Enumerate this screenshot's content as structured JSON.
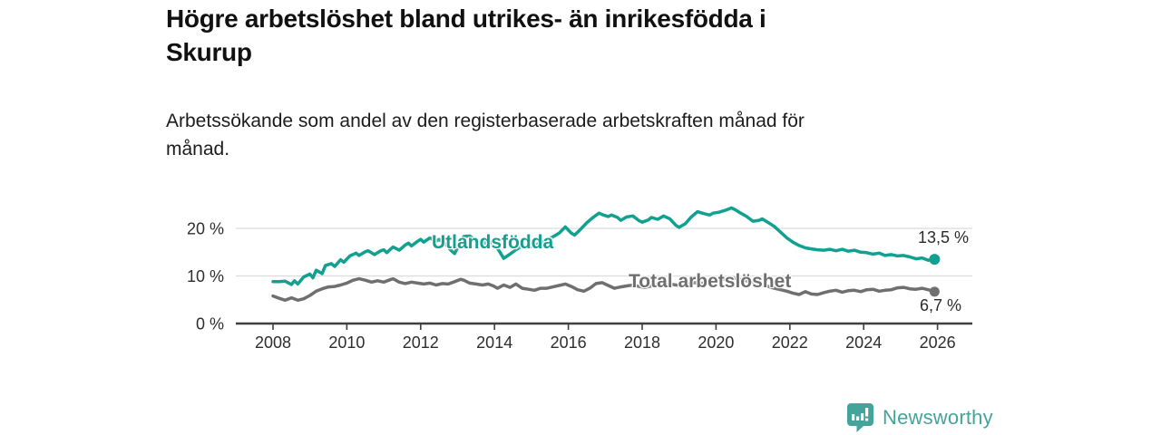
{
  "title": {
    "line1": "Högre arbetslöshet bland utrikes- än inrikesfödda i",
    "line2": "Skurup"
  },
  "subtitle": {
    "line1": "Arbetssökande som andel av den registerbaserade arbetskraften månad för",
    "line2": "månad."
  },
  "footer": {
    "brand": "Newsworthy"
  },
  "colors": {
    "accent_teal": "#12a091",
    "logo_teal": "#44a49c",
    "series_gray": "#6f6f6f",
    "axis_text": "#2e2e2e",
    "gridline": "#dcdcdc",
    "axis_line": "#3f3f3f",
    "value_label": "#2b2b2b"
  },
  "chart_data": {
    "type": "line",
    "x_unit": "year (monthly observations)",
    "xlim": [
      2007.8,
      2026.9
    ],
    "ylim": [
      0,
      26
    ],
    "grid": "horizontal",
    "legend_position": "inline-labels",
    "y_ticks": [
      {
        "value": 0,
        "label": "0 %"
      },
      {
        "value": 10,
        "label": "10 %"
      },
      {
        "value": 20,
        "label": "20 %"
      }
    ],
    "x_ticks": [
      {
        "value": 2008,
        "label": "2008"
      },
      {
        "value": 2010,
        "label": "2010"
      },
      {
        "value": 2012,
        "label": "2012"
      },
      {
        "value": 2014,
        "label": "2014"
      },
      {
        "value": 2016,
        "label": "2016"
      },
      {
        "value": 2018,
        "label": "2018"
      },
      {
        "value": 2020,
        "label": "2020"
      },
      {
        "value": 2022,
        "label": "2022"
      },
      {
        "value": 2024,
        "label": "2024"
      },
      {
        "value": 2026,
        "label": "2026"
      }
    ],
    "series": [
      {
        "name": "Utlandsfödda",
        "color": "#12a091",
        "end_label": "13,5 %",
        "end_value": 13.5,
        "line_width": 3.5,
        "dot_radius": 6,
        "points": [
          [
            2008.0,
            8.8
          ],
          [
            2008.17,
            8.8
          ],
          [
            2008.33,
            8.9
          ],
          [
            2008.5,
            8.2
          ],
          [
            2008.58,
            9.0
          ],
          [
            2008.67,
            8.3
          ],
          [
            2008.83,
            9.8
          ],
          [
            2009.0,
            10.4
          ],
          [
            2009.08,
            9.6
          ],
          [
            2009.17,
            11.2
          ],
          [
            2009.33,
            10.5
          ],
          [
            2009.42,
            12.2
          ],
          [
            2009.58,
            12.6
          ],
          [
            2009.67,
            12.0
          ],
          [
            2009.83,
            13.4
          ],
          [
            2009.92,
            12.9
          ],
          [
            2010.08,
            14.2
          ],
          [
            2010.25,
            14.8
          ],
          [
            2010.33,
            14.3
          ],
          [
            2010.5,
            15.1
          ],
          [
            2010.58,
            15.3
          ],
          [
            2010.75,
            14.5
          ],
          [
            2010.92,
            15.3
          ],
          [
            2011.0,
            15.5
          ],
          [
            2011.08,
            14.9
          ],
          [
            2011.25,
            16.1
          ],
          [
            2011.42,
            15.4
          ],
          [
            2011.58,
            16.5
          ],
          [
            2011.67,
            16.9
          ],
          [
            2011.75,
            16.3
          ],
          [
            2011.92,
            17.3
          ],
          [
            2012.0,
            17.7
          ],
          [
            2012.08,
            17.1
          ],
          [
            2012.25,
            18.0
          ],
          [
            2012.42,
            17.3
          ],
          [
            2012.5,
            17.7
          ],
          [
            2012.67,
            16.7
          ],
          [
            2012.83,
            15.3
          ],
          [
            2012.92,
            14.7
          ],
          [
            2013.08,
            17.2
          ],
          [
            2013.17,
            18.3
          ],
          [
            2013.33,
            18.4
          ],
          [
            2013.5,
            17.4
          ],
          [
            2013.67,
            16.8
          ],
          [
            2013.83,
            17.1
          ],
          [
            2013.97,
            16.9
          ],
          [
            2014.08,
            15.8
          ],
          [
            2014.25,
            13.7
          ],
          [
            2014.42,
            14.6
          ],
          [
            2014.58,
            15.5
          ],
          [
            2014.75,
            16.3
          ],
          [
            2014.92,
            16.0
          ],
          [
            2015.08,
            16.4
          ],
          [
            2015.25,
            17.0
          ],
          [
            2015.42,
            17.6
          ],
          [
            2015.58,
            18.2
          ],
          [
            2015.75,
            19.0
          ],
          [
            2015.92,
            20.3
          ],
          [
            2016.08,
            19.0
          ],
          [
            2016.17,
            18.6
          ],
          [
            2016.33,
            19.8
          ],
          [
            2016.5,
            21.2
          ],
          [
            2016.67,
            22.3
          ],
          [
            2016.83,
            23.2
          ],
          [
            2016.92,
            22.9
          ],
          [
            2017.08,
            22.5
          ],
          [
            2017.17,
            22.8
          ],
          [
            2017.33,
            22.3
          ],
          [
            2017.42,
            21.7
          ],
          [
            2017.58,
            22.4
          ],
          [
            2017.75,
            22.6
          ],
          [
            2017.92,
            21.6
          ],
          [
            2018.0,
            21.3
          ],
          [
            2018.17,
            21.8
          ],
          [
            2018.25,
            22.3
          ],
          [
            2018.42,
            21.9
          ],
          [
            2018.58,
            22.6
          ],
          [
            2018.75,
            22.0
          ],
          [
            2018.92,
            20.6
          ],
          [
            2019.0,
            20.2
          ],
          [
            2019.17,
            21.0
          ],
          [
            2019.33,
            22.4
          ],
          [
            2019.5,
            23.5
          ],
          [
            2019.67,
            23.1
          ],
          [
            2019.83,
            22.8
          ],
          [
            2019.92,
            23.2
          ],
          [
            2020.08,
            23.4
          ],
          [
            2020.25,
            23.8
          ],
          [
            2020.42,
            24.3
          ],
          [
            2020.5,
            24.0
          ],
          [
            2020.67,
            23.2
          ],
          [
            2020.83,
            22.5
          ],
          [
            2021.0,
            21.5
          ],
          [
            2021.17,
            21.7
          ],
          [
            2021.25,
            22.0
          ],
          [
            2021.42,
            21.2
          ],
          [
            2021.58,
            20.4
          ],
          [
            2021.75,
            19.2
          ],
          [
            2021.92,
            18.0
          ],
          [
            2022.08,
            17.1
          ],
          [
            2022.25,
            16.4
          ],
          [
            2022.42,
            15.9
          ],
          [
            2022.58,
            15.7
          ],
          [
            2022.75,
            15.5
          ],
          [
            2022.92,
            15.4
          ],
          [
            2023.08,
            15.6
          ],
          [
            2023.25,
            15.3
          ],
          [
            2023.42,
            15.6
          ],
          [
            2023.58,
            15.2
          ],
          [
            2023.75,
            15.4
          ],
          [
            2023.92,
            15.0
          ],
          [
            2024.08,
            14.9
          ],
          [
            2024.25,
            14.6
          ],
          [
            2024.42,
            14.8
          ],
          [
            2024.58,
            14.3
          ],
          [
            2024.75,
            14.5
          ],
          [
            2024.92,
            14.2
          ],
          [
            2025.08,
            14.3
          ],
          [
            2025.25,
            14.0
          ],
          [
            2025.42,
            13.6
          ],
          [
            2025.58,
            13.8
          ],
          [
            2025.75,
            13.3
          ],
          [
            2025.92,
            13.5
          ]
        ]
      },
      {
        "name": "Total arbetslöshet",
        "color": "#6f6f6f",
        "end_label": "6,7 %",
        "end_value": 6.7,
        "line_width": 3.5,
        "dot_radius": 5.5,
        "points": [
          [
            2008.0,
            5.8
          ],
          [
            2008.17,
            5.3
          ],
          [
            2008.33,
            4.9
          ],
          [
            2008.5,
            5.4
          ],
          [
            2008.67,
            4.9
          ],
          [
            2008.83,
            5.2
          ],
          [
            2009.0,
            5.9
          ],
          [
            2009.17,
            6.8
          ],
          [
            2009.33,
            7.3
          ],
          [
            2009.5,
            7.7
          ],
          [
            2009.67,
            7.8
          ],
          [
            2009.83,
            8.1
          ],
          [
            2010.0,
            8.5
          ],
          [
            2010.17,
            9.1
          ],
          [
            2010.33,
            9.4
          ],
          [
            2010.5,
            9.1
          ],
          [
            2010.67,
            8.7
          ],
          [
            2010.83,
            9.0
          ],
          [
            2011.0,
            8.7
          ],
          [
            2011.17,
            9.2
          ],
          [
            2011.25,
            9.4
          ],
          [
            2011.42,
            8.7
          ],
          [
            2011.58,
            8.4
          ],
          [
            2011.75,
            8.7
          ],
          [
            2011.92,
            8.5
          ],
          [
            2012.08,
            8.3
          ],
          [
            2012.25,
            8.5
          ],
          [
            2012.42,
            8.1
          ],
          [
            2012.58,
            8.4
          ],
          [
            2012.75,
            8.3
          ],
          [
            2012.92,
            8.8
          ],
          [
            2013.08,
            9.3
          ],
          [
            2013.17,
            9.1
          ],
          [
            2013.33,
            8.5
          ],
          [
            2013.5,
            8.3
          ],
          [
            2013.67,
            8.1
          ],
          [
            2013.83,
            8.3
          ],
          [
            2013.97,
            7.9
          ],
          [
            2014.08,
            7.4
          ],
          [
            2014.25,
            8.1
          ],
          [
            2014.42,
            7.6
          ],
          [
            2014.58,
            8.3
          ],
          [
            2014.75,
            7.4
          ],
          [
            2014.92,
            7.2
          ],
          [
            2015.08,
            7.0
          ],
          [
            2015.25,
            7.4
          ],
          [
            2015.42,
            7.4
          ],
          [
            2015.58,
            7.7
          ],
          [
            2015.75,
            8.0
          ],
          [
            2015.92,
            8.3
          ],
          [
            2016.08,
            7.8
          ],
          [
            2016.25,
            7.1
          ],
          [
            2016.42,
            6.8
          ],
          [
            2016.58,
            7.4
          ],
          [
            2016.75,
            8.4
          ],
          [
            2016.92,
            8.6
          ],
          [
            2017.08,
            8.0
          ],
          [
            2017.25,
            7.4
          ],
          [
            2017.42,
            7.7
          ],
          [
            2017.58,
            7.9
          ],
          [
            2017.75,
            8.1
          ],
          [
            2017.92,
            7.8
          ],
          [
            2018.08,
            7.6
          ],
          [
            2018.25,
            7.9
          ],
          [
            2018.42,
            8.2
          ],
          [
            2018.58,
            8.0
          ],
          [
            2018.75,
            8.3
          ],
          [
            2018.92,
            8.1
          ],
          [
            2019.08,
            8.0
          ],
          [
            2019.25,
            8.3
          ],
          [
            2019.42,
            8.6
          ],
          [
            2019.58,
            8.4
          ],
          [
            2019.75,
            8.7
          ],
          [
            2019.92,
            8.9
          ],
          [
            2020.08,
            9.1
          ],
          [
            2020.25,
            9.4
          ],
          [
            2020.42,
            9.6
          ],
          [
            2020.58,
            9.4
          ],
          [
            2020.75,
            9.1
          ],
          [
            2020.92,
            8.8
          ],
          [
            2021.08,
            8.5
          ],
          [
            2021.25,
            8.1
          ],
          [
            2021.42,
            7.8
          ],
          [
            2021.58,
            7.4
          ],
          [
            2021.75,
            7.1
          ],
          [
            2021.92,
            6.8
          ],
          [
            2022.08,
            6.4
          ],
          [
            2022.25,
            6.1
          ],
          [
            2022.42,
            6.7
          ],
          [
            2022.58,
            6.2
          ],
          [
            2022.75,
            6.1
          ],
          [
            2022.92,
            6.5
          ],
          [
            2023.08,
            6.8
          ],
          [
            2023.25,
            7.0
          ],
          [
            2023.42,
            6.6
          ],
          [
            2023.58,
            6.9
          ],
          [
            2023.75,
            7.0
          ],
          [
            2023.92,
            6.7
          ],
          [
            2024.08,
            7.1
          ],
          [
            2024.25,
            7.2
          ],
          [
            2024.42,
            6.8
          ],
          [
            2024.58,
            7.0
          ],
          [
            2024.75,
            7.1
          ],
          [
            2024.92,
            7.5
          ],
          [
            2025.08,
            7.6
          ],
          [
            2025.25,
            7.3
          ],
          [
            2025.42,
            7.2
          ],
          [
            2025.58,
            7.4
          ],
          [
            2025.75,
            7.1
          ],
          [
            2025.92,
            6.7
          ]
        ]
      }
    ]
  }
}
